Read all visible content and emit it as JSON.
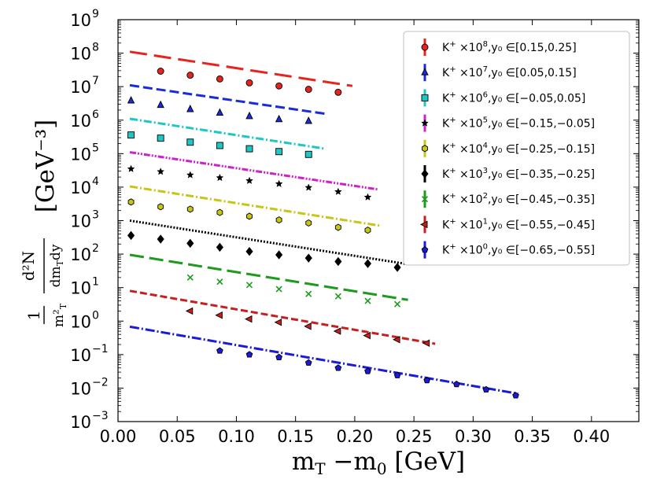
{
  "chart_data": {
    "type": "scatter",
    "title": "",
    "xlabel": "m_T − m_0 [GeV]",
    "ylabel": "(1/m_T²) d²N/(dm_T dy) [GeV⁻³]",
    "xlabel_parts": {
      "m": "m",
      "T": "T",
      "minus": " −m",
      "zero": "0",
      "unit": "  [GeV]"
    },
    "ylabel_parts": {
      "one": "1",
      "d2N": "d²N",
      "mT2": "m²",
      "T": "T",
      "dmTdy": "dm",
      "T2": "T",
      "dy": "dy",
      "unit": "[GeV⁻³]"
    },
    "xlim": [
      0.0,
      0.44
    ],
    "ylim_log10": [
      -3,
      9
    ],
    "yscale": "log",
    "x_ticks": [
      {
        "v": 0.0,
        "label": "0.00"
      },
      {
        "v": 0.05,
        "label": "0.05"
      },
      {
        "v": 0.1,
        "label": "0.10"
      },
      {
        "v": 0.15,
        "label": "0.15"
      },
      {
        "v": 0.2,
        "label": "0.20"
      },
      {
        "v": 0.25,
        "label": "0.25"
      },
      {
        "v": 0.3,
        "label": "0.30"
      },
      {
        "v": 0.35,
        "label": "0.35"
      },
      {
        "v": 0.4,
        "label": "0.40"
      }
    ],
    "y_ticks": [
      {
        "exp": -3,
        "base": "10",
        "sup": "−3"
      },
      {
        "exp": -2,
        "base": "10",
        "sup": "−2"
      },
      {
        "exp": -1,
        "base": "10",
        "sup": "−1"
      },
      {
        "exp": 0,
        "base": "10",
        "sup": "0"
      },
      {
        "exp": 1,
        "base": "10",
        "sup": "1"
      },
      {
        "exp": 2,
        "base": "10",
        "sup": "2"
      },
      {
        "exp": 3,
        "base": "10",
        "sup": "3"
      },
      {
        "exp": 4,
        "base": "10",
        "sup": "4"
      },
      {
        "exp": 5,
        "base": "10",
        "sup": "5"
      },
      {
        "exp": 6,
        "base": "10",
        "sup": "6"
      },
      {
        "exp": 7,
        "base": "10",
        "sup": "7"
      },
      {
        "exp": 8,
        "base": "10",
        "sup": "8"
      },
      {
        "exp": 9,
        "base": "10",
        "sup": "9"
      }
    ],
    "legend_position": "top-right",
    "series": [
      {
        "id": "s8",
        "particle": "K",
        "charge": "+",
        "mult": "×10",
        "power": "8",
        "range_text": ",y₀ ∈[0.15,0.25]",
        "color": "#e8231c",
        "marker": "circle",
        "dash": "22,9",
        "x": [
          0.036,
          0.061,
          0.086,
          0.111,
          0.136,
          0.161,
          0.186
        ],
        "y": [
          29000000.0,
          22000000.0,
          17000000.0,
          13000000.0,
          10500000.0,
          8300000.0,
          6800000.0
        ],
        "fit_x": [
          0.01,
          0.198
        ],
        "fit_y": [
          110000000.0,
          10500000.0
        ]
      },
      {
        "id": "s7",
        "particle": "K",
        "charge": "+",
        "mult": "×10",
        "power": "7",
        "range_text": ",y₀ ∈[0.05,0.15]",
        "color": "#1a2bd8",
        "marker": "triangle-up",
        "dash": "12,5",
        "x": [
          0.011,
          0.036,
          0.061,
          0.086,
          0.111,
          0.136,
          0.161
        ],
        "y": [
          3800000.0,
          2800000.0,
          2100000.0,
          1650000.0,
          1300000.0,
          1050000.0,
          930000.0
        ],
        "fit_x": [
          0.01,
          0.175
        ],
        "fit_y": [
          11000000.0,
          1550000.0
        ]
      },
      {
        "id": "s6",
        "particle": "K",
        "charge": "+",
        "mult": "×10",
        "power": "6",
        "range_text": ",y₀ ∈[−0.05,0.05]",
        "color": "#1ec6c6",
        "marker": "square",
        "dash": "10,3,2,3",
        "x": [
          0.011,
          0.036,
          0.061,
          0.086,
          0.111,
          0.136,
          0.161
        ],
        "y": [
          360000.0,
          290000.0,
          220000.0,
          175000.0,
          140000.0,
          115000.0,
          95000.0
        ],
        "fit_x": [
          0.01,
          0.175
        ],
        "fit_y": [
          1100000.0,
          140000.0
        ]
      },
      {
        "id": "s5",
        "particle": "K",
        "charge": "+",
        "mult": "×10",
        "power": "5",
        "range_text": ",y₀ ∈[−0.15,−0.05]",
        "color": "#cc22cc",
        "marker": "star",
        "dash": "8,2,2,2,2,2",
        "x": [
          0.011,
          0.036,
          0.061,
          0.086,
          0.111,
          0.136,
          0.161,
          0.186,
          0.211
        ],
        "y": [
          35000.0,
          29000.0,
          23000.0,
          19000.0,
          15500.0,
          12500.0,
          9700.0,
          7300.0,
          5000.0
        ],
        "fit_x": [
          0.01,
          0.22
        ],
        "fit_y": [
          110000.0,
          8500.0
        ]
      },
      {
        "id": "s4",
        "particle": "K",
        "charge": "+",
        "mult": "×10",
        "power": "4",
        "range_text": ",y₀ ∈[−0.25,−0.15]",
        "color": "#c6c615",
        "marker": "hexagon",
        "dash": "10,3,2,3",
        "x": [
          0.011,
          0.036,
          0.061,
          0.086,
          0.111,
          0.136,
          0.161,
          0.186,
          0.211
        ],
        "y": [
          3600.0,
          2600.0,
          2200.0,
          1750.0,
          1350.0,
          1050.0,
          850.0,
          630.0,
          520.0
        ],
        "fit_x": [
          0.01,
          0.222
        ],
        "fit_y": [
          10500.0,
          700.0
        ]
      },
      {
        "id": "s3",
        "particle": "K",
        "charge": "+",
        "mult": "×10",
        "power": "3",
        "range_text": ",y₀ ∈[−0.35,−0.25]",
        "color": "#000000",
        "marker": "diamond",
        "dash": "2,2",
        "x": [
          0.011,
          0.036,
          0.061,
          0.086,
          0.111,
          0.136,
          0.161,
          0.186,
          0.211,
          0.236
        ],
        "y": [
          360.0,
          280.0,
          210.0,
          160.0,
          120.0,
          95.0,
          76.0,
          60.0,
          52.0,
          40.0
        ],
        "fit_x": [
          0.01,
          0.245
        ],
        "fit_y": [
          1000.0,
          50.0
        ]
      },
      {
        "id": "s2",
        "particle": "K",
        "charge": "+",
        "mult": "×10",
        "power": "2",
        "range_text": ",y₀ ∈[−0.45,−0.35]",
        "color": "#1e9a1e",
        "marker": "x",
        "dash": "18,7",
        "x": [
          0.061,
          0.086,
          0.111,
          0.136,
          0.161,
          0.186,
          0.211,
          0.236
        ],
        "y": [
          20.0,
          15.0,
          12.0,
          9.0,
          6.5,
          5.5,
          4.0,
          3.2
        ],
        "fit_x": [
          0.01,
          0.245
        ],
        "fit_y": [
          95.0,
          4.3
        ]
      },
      {
        "id": "s1",
        "particle": "K",
        "charge": "+",
        "mult": "×10",
        "power": "1",
        "range_text": ",y₀ ∈[−0.55,−0.45]",
        "color": "#c81e1e",
        "marker": "triangle-left",
        "dash": "9,4",
        "x": [
          0.061,
          0.086,
          0.111,
          0.136,
          0.161,
          0.186,
          0.211,
          0.236,
          0.261
        ],
        "y": [
          2.0,
          1.5,
          1.15,
          0.92,
          0.7,
          0.5,
          0.37,
          0.28,
          0.22
        ],
        "fit_x": [
          0.01,
          0.268
        ],
        "fit_y": [
          8.0,
          0.21
        ]
      },
      {
        "id": "s0",
        "particle": "K",
        "charge": "+",
        "mult": "×10",
        "power": "0",
        "range_text": ",y₀ ∈[−0.65,−0.55]",
        "color": "#1a1ad8",
        "marker": "pentagon",
        "dash": "12,3,2,3",
        "x": [
          0.086,
          0.111,
          0.136,
          0.161,
          0.186,
          0.211,
          0.236,
          0.261,
          0.286,
          0.311,
          0.336
        ],
        "y": [
          0.13,
          0.1,
          0.083,
          0.057,
          0.04,
          0.032,
          0.024,
          0.017,
          0.013,
          0.009,
          0.006
        ],
        "fit_x": [
          0.01,
          0.338
        ],
        "fit_y": [
          0.68,
          0.0068
        ]
      }
    ]
  }
}
